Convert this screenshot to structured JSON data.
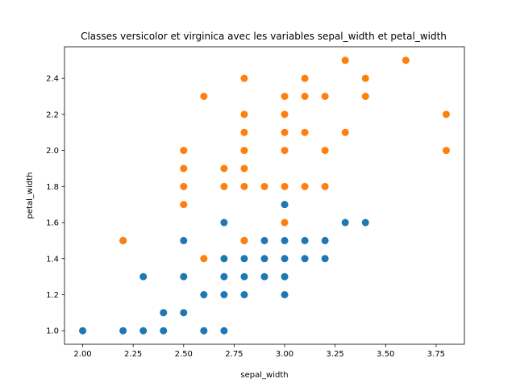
{
  "chart_data": {
    "type": "scatter",
    "title": "Classes versicolor et virginica avec les variables sepal_width et petal_width",
    "xlabel": "sepal_width",
    "ylabel": "petal_width",
    "xlim": [
      1.91,
      3.89
    ],
    "ylim": [
      0.925,
      2.575
    ],
    "x_ticks": [
      "2.00",
      "2.25",
      "2.50",
      "2.75",
      "3.00",
      "3.25",
      "3.50",
      "3.75"
    ],
    "y_ticks": [
      "1.0",
      "1.2",
      "1.4",
      "1.6",
      "1.8",
      "2.0",
      "2.2",
      "2.4"
    ],
    "grid": false,
    "legend": false,
    "series": [
      {
        "color": "#1f77b4",
        "points": [
          [
            2.0,
            1.0
          ],
          [
            2.2,
            1.0
          ],
          [
            2.3,
            1.0
          ],
          [
            2.4,
            1.0
          ],
          [
            2.6,
            1.0
          ],
          [
            2.7,
            1.0
          ],
          [
            2.4,
            1.1
          ],
          [
            2.5,
            1.1
          ],
          [
            2.6,
            1.2
          ],
          [
            2.7,
            1.2
          ],
          [
            2.8,
            1.2
          ],
          [
            3.0,
            1.2
          ],
          [
            2.3,
            1.3
          ],
          [
            2.5,
            1.3
          ],
          [
            2.7,
            1.3
          ],
          [
            2.8,
            1.3
          ],
          [
            2.9,
            1.3
          ],
          [
            3.0,
            1.3
          ],
          [
            2.7,
            1.4
          ],
          [
            2.8,
            1.4
          ],
          [
            2.9,
            1.4
          ],
          [
            3.0,
            1.4
          ],
          [
            3.1,
            1.4
          ],
          [
            3.2,
            1.4
          ],
          [
            2.2,
            1.5
          ],
          [
            2.5,
            1.5
          ],
          [
            2.8,
            1.5
          ],
          [
            2.9,
            1.5
          ],
          [
            3.0,
            1.5
          ],
          [
            3.1,
            1.5
          ],
          [
            3.2,
            1.5
          ],
          [
            2.7,
            1.6
          ],
          [
            3.3,
            1.6
          ],
          [
            3.4,
            1.6
          ],
          [
            3.0,
            1.7
          ]
        ]
      },
      {
        "color": "#ff7f0e",
        "points": [
          [
            2.6,
            1.4
          ],
          [
            2.2,
            1.5
          ],
          [
            2.8,
            1.5
          ],
          [
            3.0,
            1.6
          ],
          [
            2.5,
            1.7
          ],
          [
            2.5,
            1.8
          ],
          [
            2.7,
            1.8
          ],
          [
            2.8,
            1.8
          ],
          [
            2.9,
            1.8
          ],
          [
            3.0,
            1.8
          ],
          [
            3.1,
            1.8
          ],
          [
            3.2,
            1.8
          ],
          [
            2.5,
            1.9
          ],
          [
            2.7,
            1.9
          ],
          [
            2.8,
            1.9
          ],
          [
            2.5,
            2.0
          ],
          [
            2.8,
            2.0
          ],
          [
            3.0,
            2.0
          ],
          [
            3.2,
            2.0
          ],
          [
            3.8,
            2.0
          ],
          [
            2.8,
            2.1
          ],
          [
            3.0,
            2.1
          ],
          [
            3.1,
            2.1
          ],
          [
            3.3,
            2.1
          ],
          [
            2.8,
            2.2
          ],
          [
            3.0,
            2.2
          ],
          [
            3.8,
            2.2
          ],
          [
            2.6,
            2.3
          ],
          [
            3.0,
            2.3
          ],
          [
            3.1,
            2.3
          ],
          [
            3.2,
            2.3
          ],
          [
            3.4,
            2.3
          ],
          [
            2.8,
            2.4
          ],
          [
            3.1,
            2.4
          ],
          [
            3.4,
            2.4
          ],
          [
            3.3,
            2.5
          ],
          [
            3.6,
            2.5
          ]
        ]
      }
    ]
  }
}
